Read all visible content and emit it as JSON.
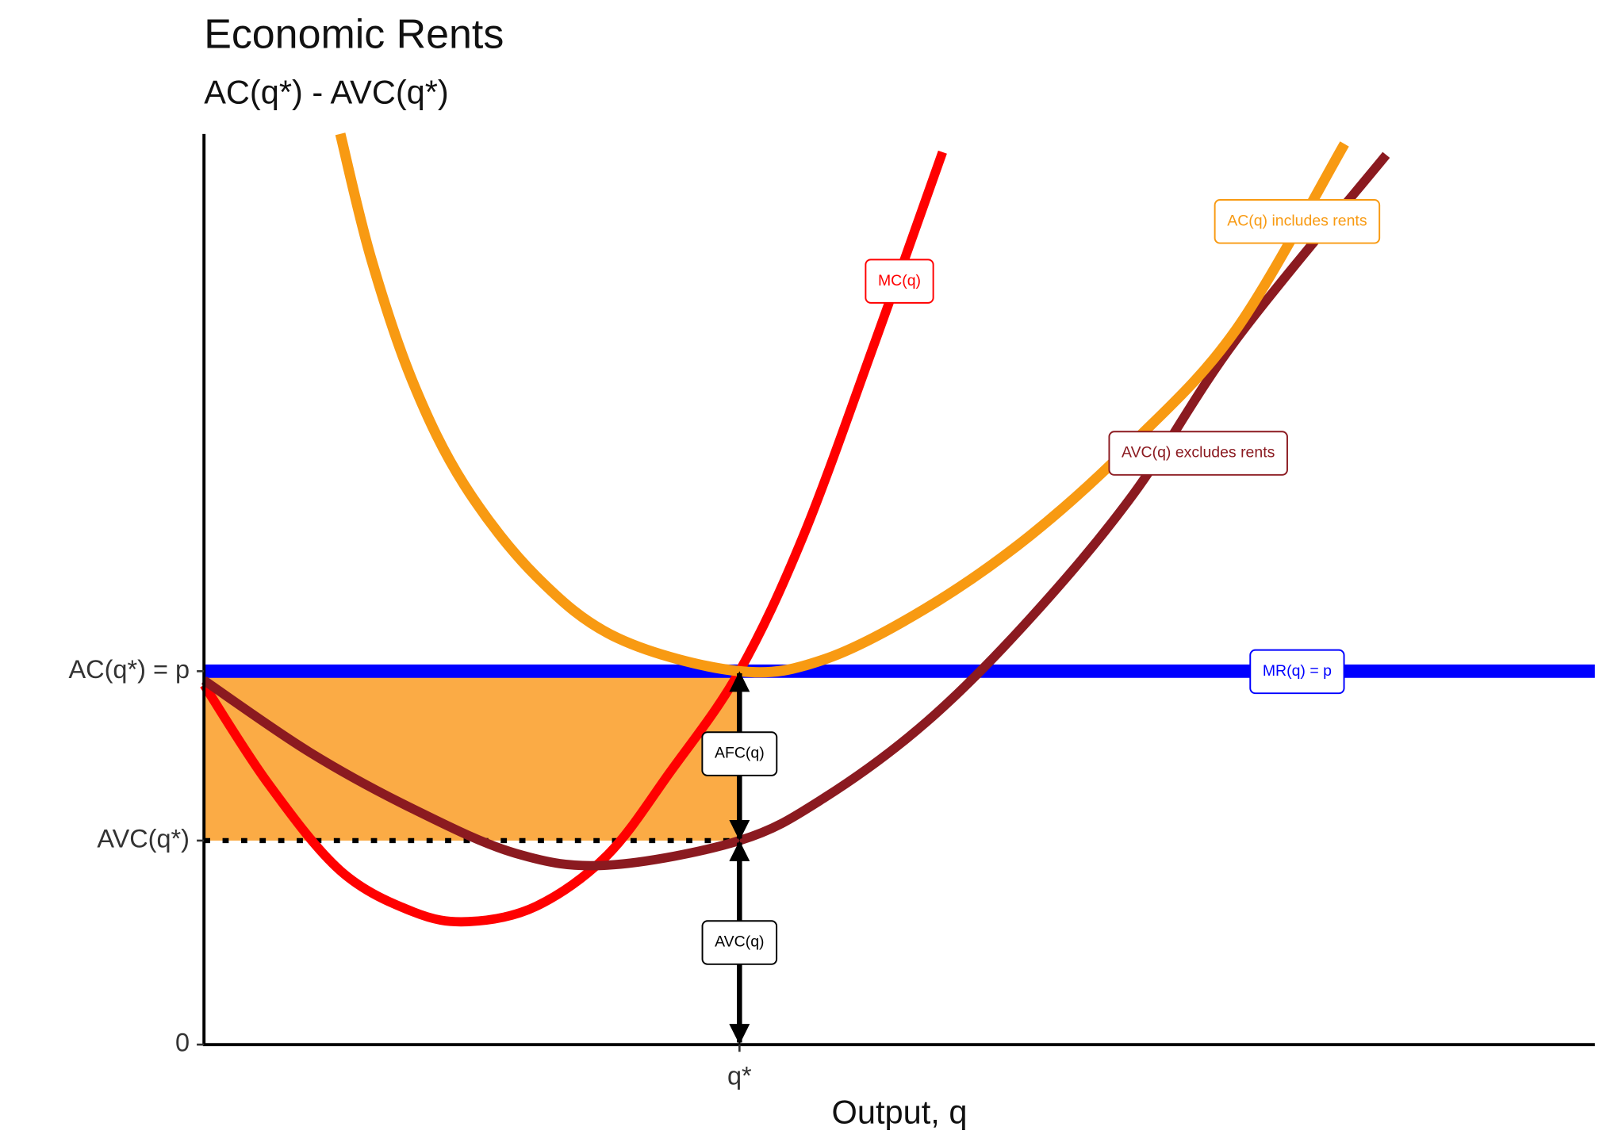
{
  "chart_data": {
    "type": "line",
    "title": "Economic Rents",
    "subtitle": "AC(q*) - AVC(q*)",
    "x_label": "Output, q",
    "xlim": [
      0,
      10
    ],
    "ylim": [
      0,
      10
    ],
    "xticks": [
      {
        "value": 3.85,
        "label": "q*"
      }
    ],
    "yticks": [
      0,
      {
        "value": 2.24,
        "label": "AVC(q*)"
      },
      {
        "value": 4.1,
        "label": "AC(q*) = p"
      }
    ],
    "series": [
      {
        "name": "MC(q)",
        "color": "#ff0000",
        "x": [
          0,
          0.46,
          0.98,
          1.5,
          1.9,
          2.39,
          2.9,
          3.35,
          3.85,
          4.31,
          4.83,
          5.31
        ],
        "values": [
          3.95,
          2.87,
          1.91,
          1.46,
          1.35,
          1.52,
          2.08,
          2.99,
          4.1,
          5.59,
          7.74,
          9.8
        ]
      },
      {
        "name": "AC(q) includes rents",
        "color": "#f89a12",
        "x": [
          0.98,
          1.2,
          1.5,
          1.87,
          2.39,
          2.98,
          3.85,
          4.46,
          5.2,
          5.94,
          6.68,
          7.42,
          8.2
        ],
        "values": [
          10.0,
          8.64,
          7.28,
          6.15,
          5.14,
          4.46,
          4.1,
          4.23,
          4.8,
          5.59,
          6.61,
          7.85,
          9.89
        ]
      },
      {
        "name": "AVC(q) excludes rents",
        "color": "#8b1a20",
        "x": [
          0,
          0.76,
          1.5,
          2.24,
          2.9,
          3.85,
          4.46,
          5.2,
          5.94,
          6.68,
          7.42,
          8.5
        ],
        "values": [
          4.0,
          3.21,
          2.59,
          2.1,
          1.97,
          2.24,
          2.71,
          3.55,
          4.68,
          6.04,
          7.74,
          9.77
        ]
      },
      {
        "name": "MR(q) = p",
        "color": "#0000ff",
        "x": [
          0,
          10
        ],
        "values": [
          4.1,
          4.1
        ]
      }
    ],
    "annotations": [
      "AFC(q)",
      "AVC(q)"
    ],
    "fill_color": "#fbab45"
  }
}
